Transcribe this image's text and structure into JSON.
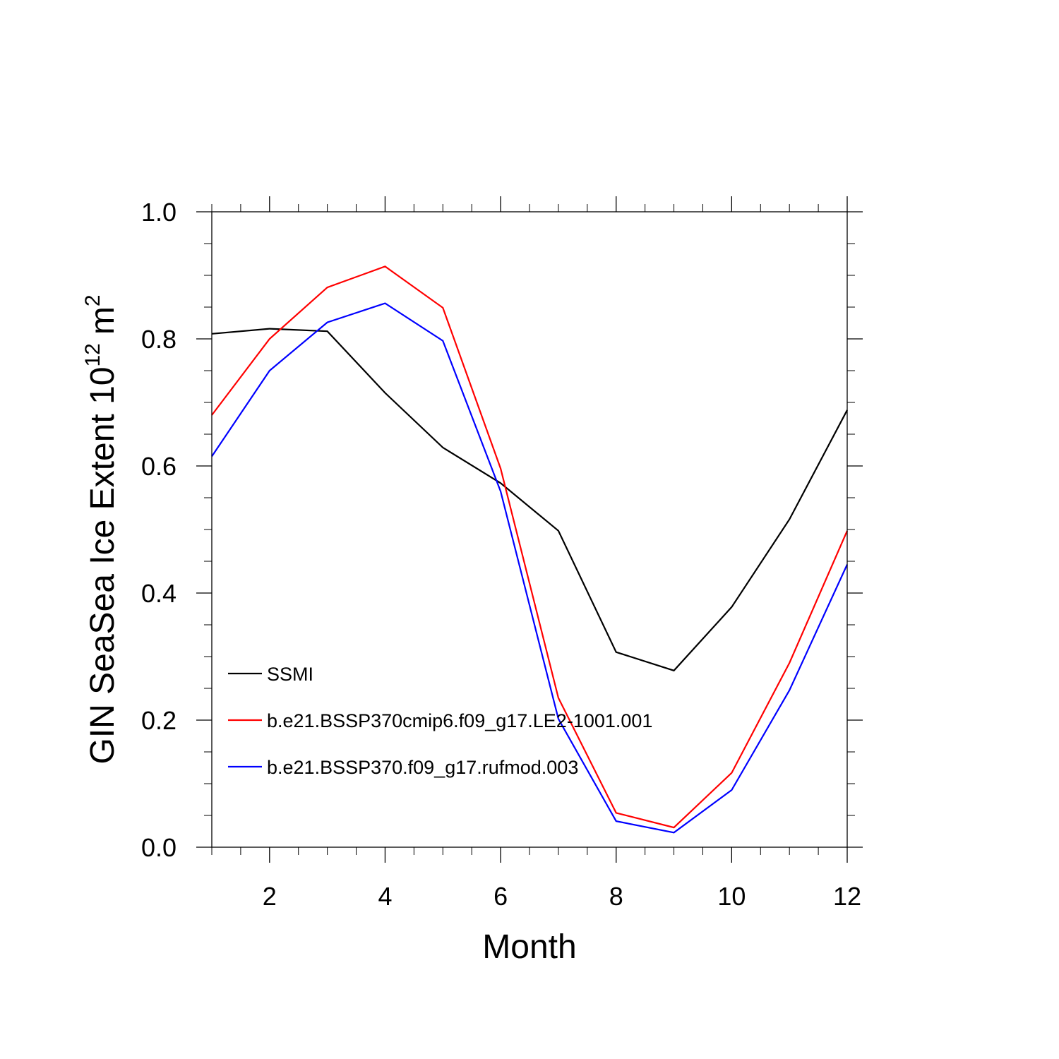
{
  "chart_data": {
    "type": "line",
    "title": "",
    "xlabel": "Month",
    "ylabel": {
      "prefix": "GIN SeaSea Ice Extent 10",
      "exponent": "12",
      "unit": "m",
      "unit_exponent": "2"
    },
    "xlim": [
      1,
      12
    ],
    "ylim": [
      0.0,
      1.0
    ],
    "x_major_ticks": [
      2,
      4,
      6,
      8,
      10,
      12
    ],
    "x_tick_labels": [
      "2",
      "4",
      "6",
      "8",
      "10",
      "12"
    ],
    "x_minor_step": 0.5,
    "y_major_ticks": [
      0.0,
      0.2,
      0.4,
      0.6,
      0.8,
      1.0
    ],
    "y_tick_labels": [
      "0.0",
      "0.2",
      "0.4",
      "0.6",
      "0.8",
      "1.0"
    ],
    "y_minor_step": 0.05,
    "grid": false,
    "legend_position": "lower-left",
    "x": [
      1,
      2,
      3,
      4,
      5,
      6,
      7,
      8,
      9,
      10,
      11,
      12
    ],
    "series": [
      {
        "name": "SSMI",
        "color": "#000000",
        "values": [
          0.808,
          0.816,
          0.812,
          0.715,
          0.629,
          0.573,
          0.498,
          0.307,
          0.278,
          0.378,
          0.516,
          0.688
        ]
      },
      {
        "name": "b.e21.BSSP370cmip6.f09_g17.LE2-1001.001",
        "color": "#ff0000",
        "values": [
          0.68,
          0.8,
          0.881,
          0.914,
          0.849,
          0.596,
          0.235,
          0.054,
          0.031,
          0.117,
          0.29,
          0.498
        ]
      },
      {
        "name": "b.e21.BSSP370.f09_g17.rufmod.003",
        "color": "#0000ff",
        "values": [
          0.615,
          0.75,
          0.826,
          0.856,
          0.797,
          0.56,
          0.202,
          0.041,
          0.023,
          0.09,
          0.247,
          0.445
        ]
      }
    ]
  }
}
